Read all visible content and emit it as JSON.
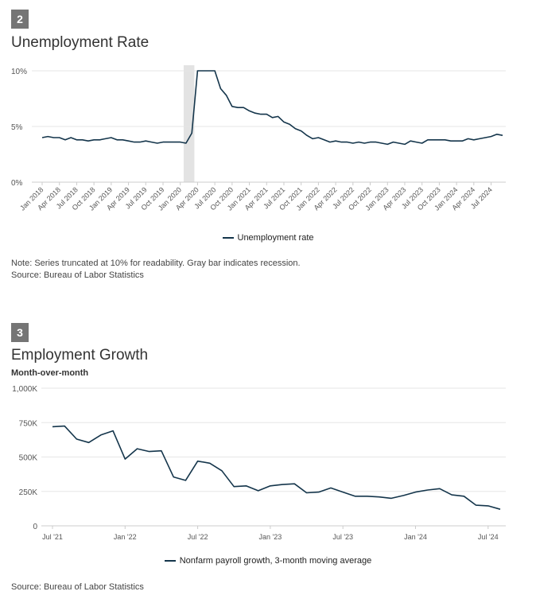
{
  "colors": {
    "series": "#14354b",
    "grid": "#e6e6e6",
    "axis": "#cccccc",
    "recession": "#e3e3e3",
    "badge": "#757575"
  },
  "section2": {
    "badge": "2",
    "title": "Unemployment Rate",
    "legend_label": "Unemployment rate",
    "note": "Note: Series truncated at 10% for readability. Gray bar indicates recession.",
    "source": "Source: Bureau of Labor Statistics"
  },
  "section3": {
    "badge": "3",
    "title": "Employment Growth",
    "subtitle": "Month-over-month",
    "legend_label": "Nonfarm payroll growth, 3-month moving average",
    "source": "Source: Bureau of Labor Statistics"
  },
  "chart_data": [
    {
      "type": "line",
      "title": "Unemployment Rate",
      "x_start": "Jan 2018",
      "x_end": "Sep 2024",
      "ylim": [
        0,
        10
      ],
      "y_ticks": [
        {
          "value": 0,
          "label": "0%"
        },
        {
          "value": 5,
          "label": "5%"
        },
        {
          "value": 10,
          "label": "10%"
        }
      ],
      "x_ticks": [
        "Jan 2018",
        "Apr 2018",
        "Jul 2018",
        "Oct 2018",
        "Jan 2019",
        "Apr 2019",
        "Jul 2019",
        "Oct 2019",
        "Jan 2020",
        "Apr 2020",
        "Jul 2020",
        "Oct 2020",
        "Jan 2021",
        "Apr 2021",
        "Jul 2021",
        "Oct 2021",
        "Jan 2022",
        "Apr 2022",
        "Jul 2022",
        "Oct 2022",
        "Jan 2023",
        "Apr 2023",
        "Jul 2023",
        "Oct 2023",
        "Jan 2024",
        "Apr 2024",
        "Jul 2024"
      ],
      "recession": [
        "Feb 2020",
        "Apr 2020"
      ],
      "grid": true,
      "legend": "bottom-center",
      "series": [
        {
          "name": "Unemployment rate",
          "values": [
            4.0,
            4.1,
            4.0,
            4.0,
            3.8,
            4.0,
            3.8,
            3.8,
            3.7,
            3.8,
            3.8,
            3.9,
            4.0,
            3.8,
            3.8,
            3.7,
            3.6,
            3.6,
            3.7,
            3.6,
            3.5,
            3.6,
            3.6,
            3.6,
            3.6,
            3.5,
            4.4,
            10.0,
            10.0,
            10.0,
            10.0,
            8.4,
            7.8,
            6.8,
            6.7,
            6.7,
            6.4,
            6.2,
            6.1,
            6.1,
            5.8,
            5.9,
            5.4,
            5.2,
            4.8,
            4.6,
            4.2,
            3.9,
            4.0,
            3.8,
            3.6,
            3.7,
            3.6,
            3.6,
            3.5,
            3.6,
            3.5,
            3.6,
            3.6,
            3.5,
            3.4,
            3.6,
            3.5,
            3.4,
            3.7,
            3.6,
            3.5,
            3.8,
            3.8,
            3.8,
            3.8,
            3.7,
            3.7,
            3.7,
            3.9,
            3.8,
            3.9,
            4.0,
            4.1,
            4.3,
            4.2
          ]
        }
      ]
    },
    {
      "type": "line",
      "title": "Employment Growth",
      "subtitle": "Month-over-month",
      "x_start": "Jul 2021",
      "x_end": "Aug 2024",
      "ylim": [
        0,
        1000
      ],
      "y_ticks": [
        {
          "value": 0,
          "label": "0"
        },
        {
          "value": 250,
          "label": "250K"
        },
        {
          "value": 500,
          "label": "500K"
        },
        {
          "value": 750,
          "label": "750K"
        },
        {
          "value": 1000,
          "label": "1,000K"
        }
      ],
      "x_ticks": [
        "Jul '21",
        "Jan '22",
        "Jul '22",
        "Jan '23",
        "Jul '23",
        "Jan '24",
        "Jul '24"
      ],
      "grid": true,
      "legend": "bottom-center",
      "series": [
        {
          "name": "Nonfarm payroll growth, 3-month moving average",
          "values": [
            720,
            725,
            630,
            605,
            660,
            690,
            485,
            560,
            540,
            545,
            355,
            330,
            470,
            455,
            400,
            285,
            290,
            255,
            290,
            300,
            305,
            240,
            245,
            275,
            245,
            215,
            215,
            210,
            200,
            220,
            245,
            260,
            270,
            225,
            215,
            150,
            145,
            120
          ]
        }
      ]
    }
  ]
}
